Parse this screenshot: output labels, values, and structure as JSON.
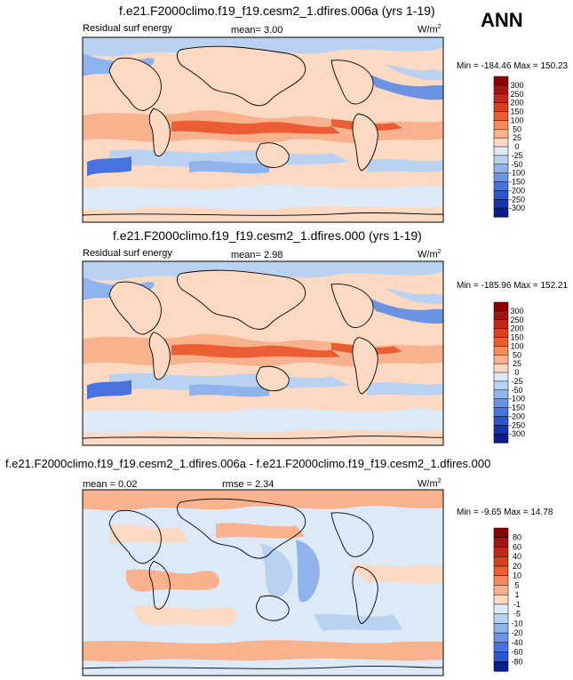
{
  "season": "ANN",
  "panels": [
    {
      "title": "f.e21.F2000climo.f19_f19.cesm2_1.dfires.006a (yrs 1-19)",
      "left_label": "Residual surf energy",
      "center_label": "mean=  3.00",
      "units": "W/m",
      "units_sup": "2",
      "stats": "Min = -184.46 Max = 150.23",
      "colorbar": {
        "labels": [
          "300",
          "250",
          "200",
          "150",
          "100",
          "50",
          "25",
          "0",
          "-25",
          "-50",
          "-100",
          "-150",
          "-200",
          "-250",
          "-300"
        ],
        "colors": [
          "#8b0000",
          "#a31515",
          "#c0281b",
          "#d9401f",
          "#ec5d33",
          "#f58a5c",
          "#f8b38e",
          "#fbd9c3",
          "#dce9f7",
          "#b9d2f2",
          "#8fb3ec",
          "#6b93e4",
          "#4873de",
          "#2c55cf",
          "#1535b0",
          "#081d8c"
        ]
      }
    },
    {
      "title": "f.e21.F2000climo.f19_f19.cesm2_1.dfires.000 (yrs 1-19)",
      "left_label": "Residual surf energy",
      "center_label": "mean=  2.98",
      "units": "W/m",
      "units_sup": "2",
      "stats": "Min = -185.96 Max = 152.21",
      "colorbar": {
        "labels": [
          "300",
          "250",
          "200",
          "150",
          "100",
          "50",
          "25",
          "0",
          "-25",
          "-50",
          "-100",
          "-150",
          "-200",
          "-250",
          "-300"
        ],
        "colors": [
          "#8b0000",
          "#a31515",
          "#c0281b",
          "#d9401f",
          "#ec5d33",
          "#f58a5c",
          "#f8b38e",
          "#fbd9c3",
          "#dce9f7",
          "#b9d2f2",
          "#8fb3ec",
          "#6b93e4",
          "#4873de",
          "#2c55cf",
          "#1535b0",
          "#081d8c"
        ]
      }
    },
    {
      "title": "f.e21.F2000climo.f19_f19.cesm2_1.dfires.006a - f.e21.F2000climo.f19_f19.cesm2_1.dfires.000",
      "left_label": "mean =  0.02",
      "center_label": "rmse =  2.34",
      "units": "W/m",
      "units_sup": "2",
      "stats": "Min =  -9.65 Max =  14.78",
      "colorbar": {
        "labels": [
          "80",
          "60",
          "40",
          "20",
          "10",
          "5",
          "1",
          "-1",
          "-5",
          "-10",
          "-20",
          "-40",
          "-60",
          "-80"
        ],
        "colors": [
          "#8b0000",
          "#a31515",
          "#c0281b",
          "#d9401f",
          "#ec5d33",
          "#f58a5c",
          "#f8b38e",
          "#fbd9c3",
          "#dce9f7",
          "#b9d2f2",
          "#8fb3ec",
          "#6b93e4",
          "#4873de",
          "#2c55cf",
          "#081d8c"
        ]
      }
    }
  ],
  "colors": {
    "positive": "#fbd9c3",
    "negative": "#b9d2f2",
    "land_outline": "#000000"
  }
}
